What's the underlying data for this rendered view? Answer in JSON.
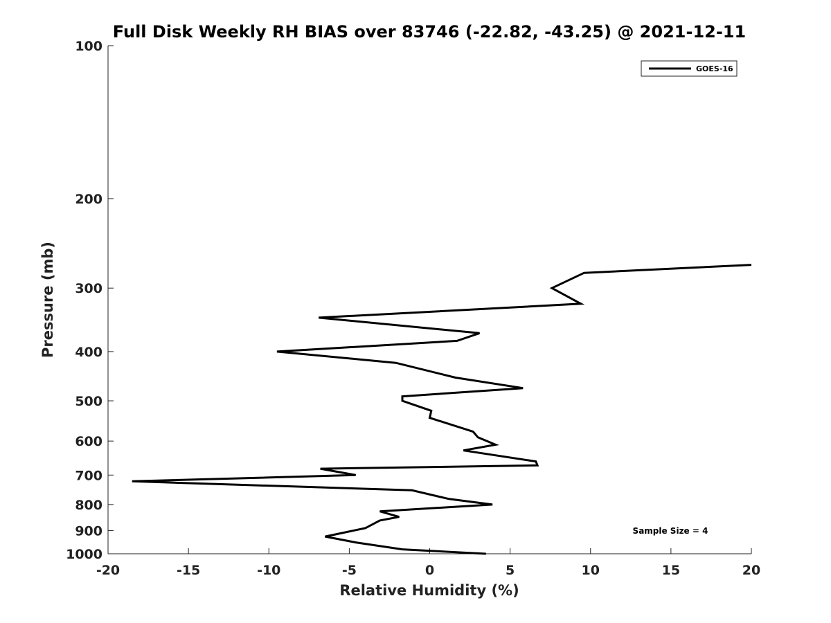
{
  "chart_data": {
    "type": "line",
    "title": "Full Disk Weekly RH BIAS over 83746 (-22.82, -43.25) @ 2021-12-11",
    "xlabel": "Relative Humidity (%)",
    "ylabel": "Pressure (mb)",
    "xlim": [
      -20,
      20
    ],
    "ylim": [
      1000,
      100
    ],
    "y_scale": "log",
    "y_reversed": true,
    "grid": false,
    "legend_position": "top-right",
    "xticks": [
      -20,
      -15,
      -10,
      -5,
      0,
      5,
      10,
      15,
      20
    ],
    "xtick_labels": [
      "-20",
      "-15",
      "-10",
      "-5",
      "0",
      "5",
      "10",
      "15",
      "20"
    ],
    "yticks": [
      100,
      200,
      300,
      400,
      500,
      600,
      700,
      800,
      900,
      1000
    ],
    "ytick_labels": [
      "100",
      "200",
      "300",
      "400",
      "500",
      "600",
      "700",
      "800",
      "900",
      "1000"
    ],
    "annotation": "Sample Size = 4",
    "series": [
      {
        "name": "GOES-16",
        "color": "#000000",
        "x": [
          20.0,
          9.6,
          7.6,
          9.4,
          -6.9,
          3.1,
          1.7,
          -9.5,
          -2.1,
          1.6,
          5.8,
          -1.7,
          -1.7,
          0.1,
          0.0,
          2.7,
          3.0,
          4.1,
          2.1,
          6.6,
          6.7,
          -6.8,
          -4.6,
          -18.5,
          -1.1,
          1.2,
          3.9,
          -3.1,
          -1.9,
          -3.1,
          -4.0,
          -6.5,
          -4.6,
          -1.7,
          3.5
        ],
        "y": [
          270,
          280,
          300,
          322,
          343,
          368,
          381,
          400,
          421,
          450,
          472,
          490,
          500,
          523,
          540,
          575,
          590,
          610,
          626,
          658,
          670,
          680,
          700,
          720,
          750,
          780,
          800,
          825,
          846,
          860,
          890,
          925,
          950,
          980,
          1000
        ]
      }
    ]
  }
}
